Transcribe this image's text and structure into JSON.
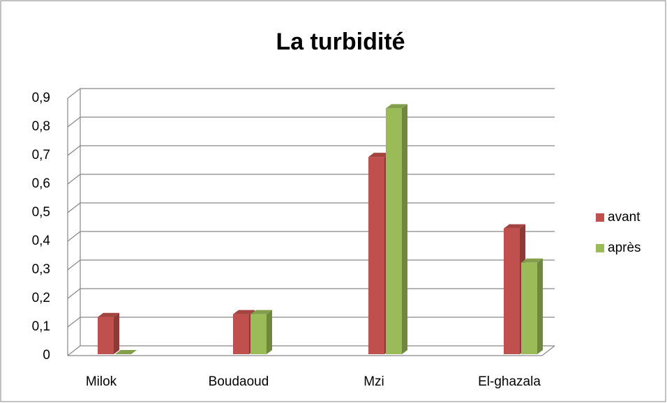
{
  "chart_data": {
    "type": "bar3d",
    "title": "La turbidité",
    "categories": [
      "Milok",
      "Boudaoud",
      "Mzi",
      "El-ghazala"
    ],
    "series": [
      {
        "name": "avant",
        "color": "#c0504d",
        "values": [
          0.13,
          0.14,
          0.69,
          0.44
        ]
      },
      {
        "name": "après",
        "color": "#9bbb59",
        "values": [
          0,
          0.14,
          0.86,
          0.32
        ]
      }
    ],
    "ylim": [
      0,
      0.9
    ],
    "yticks": [
      0,
      {
        "value": 0.1,
        "label": "0,1"
      },
      {
        "value": 0.2,
        "label": "0,2"
      },
      {
        "value": 0.3,
        "label": "0,3"
      },
      {
        "value": 0.4,
        "label": "0,4"
      },
      {
        "value": 0.5,
        "label": "0,5"
      },
      {
        "value": 0.6,
        "label": "0,6"
      },
      {
        "value": 0.7,
        "label": "0,7"
      },
      {
        "value": 0.8,
        "label": "0,8"
      },
      {
        "value": 0.9,
        "label": "0,9"
      }
    ],
    "grid": true,
    "legend": "right"
  }
}
